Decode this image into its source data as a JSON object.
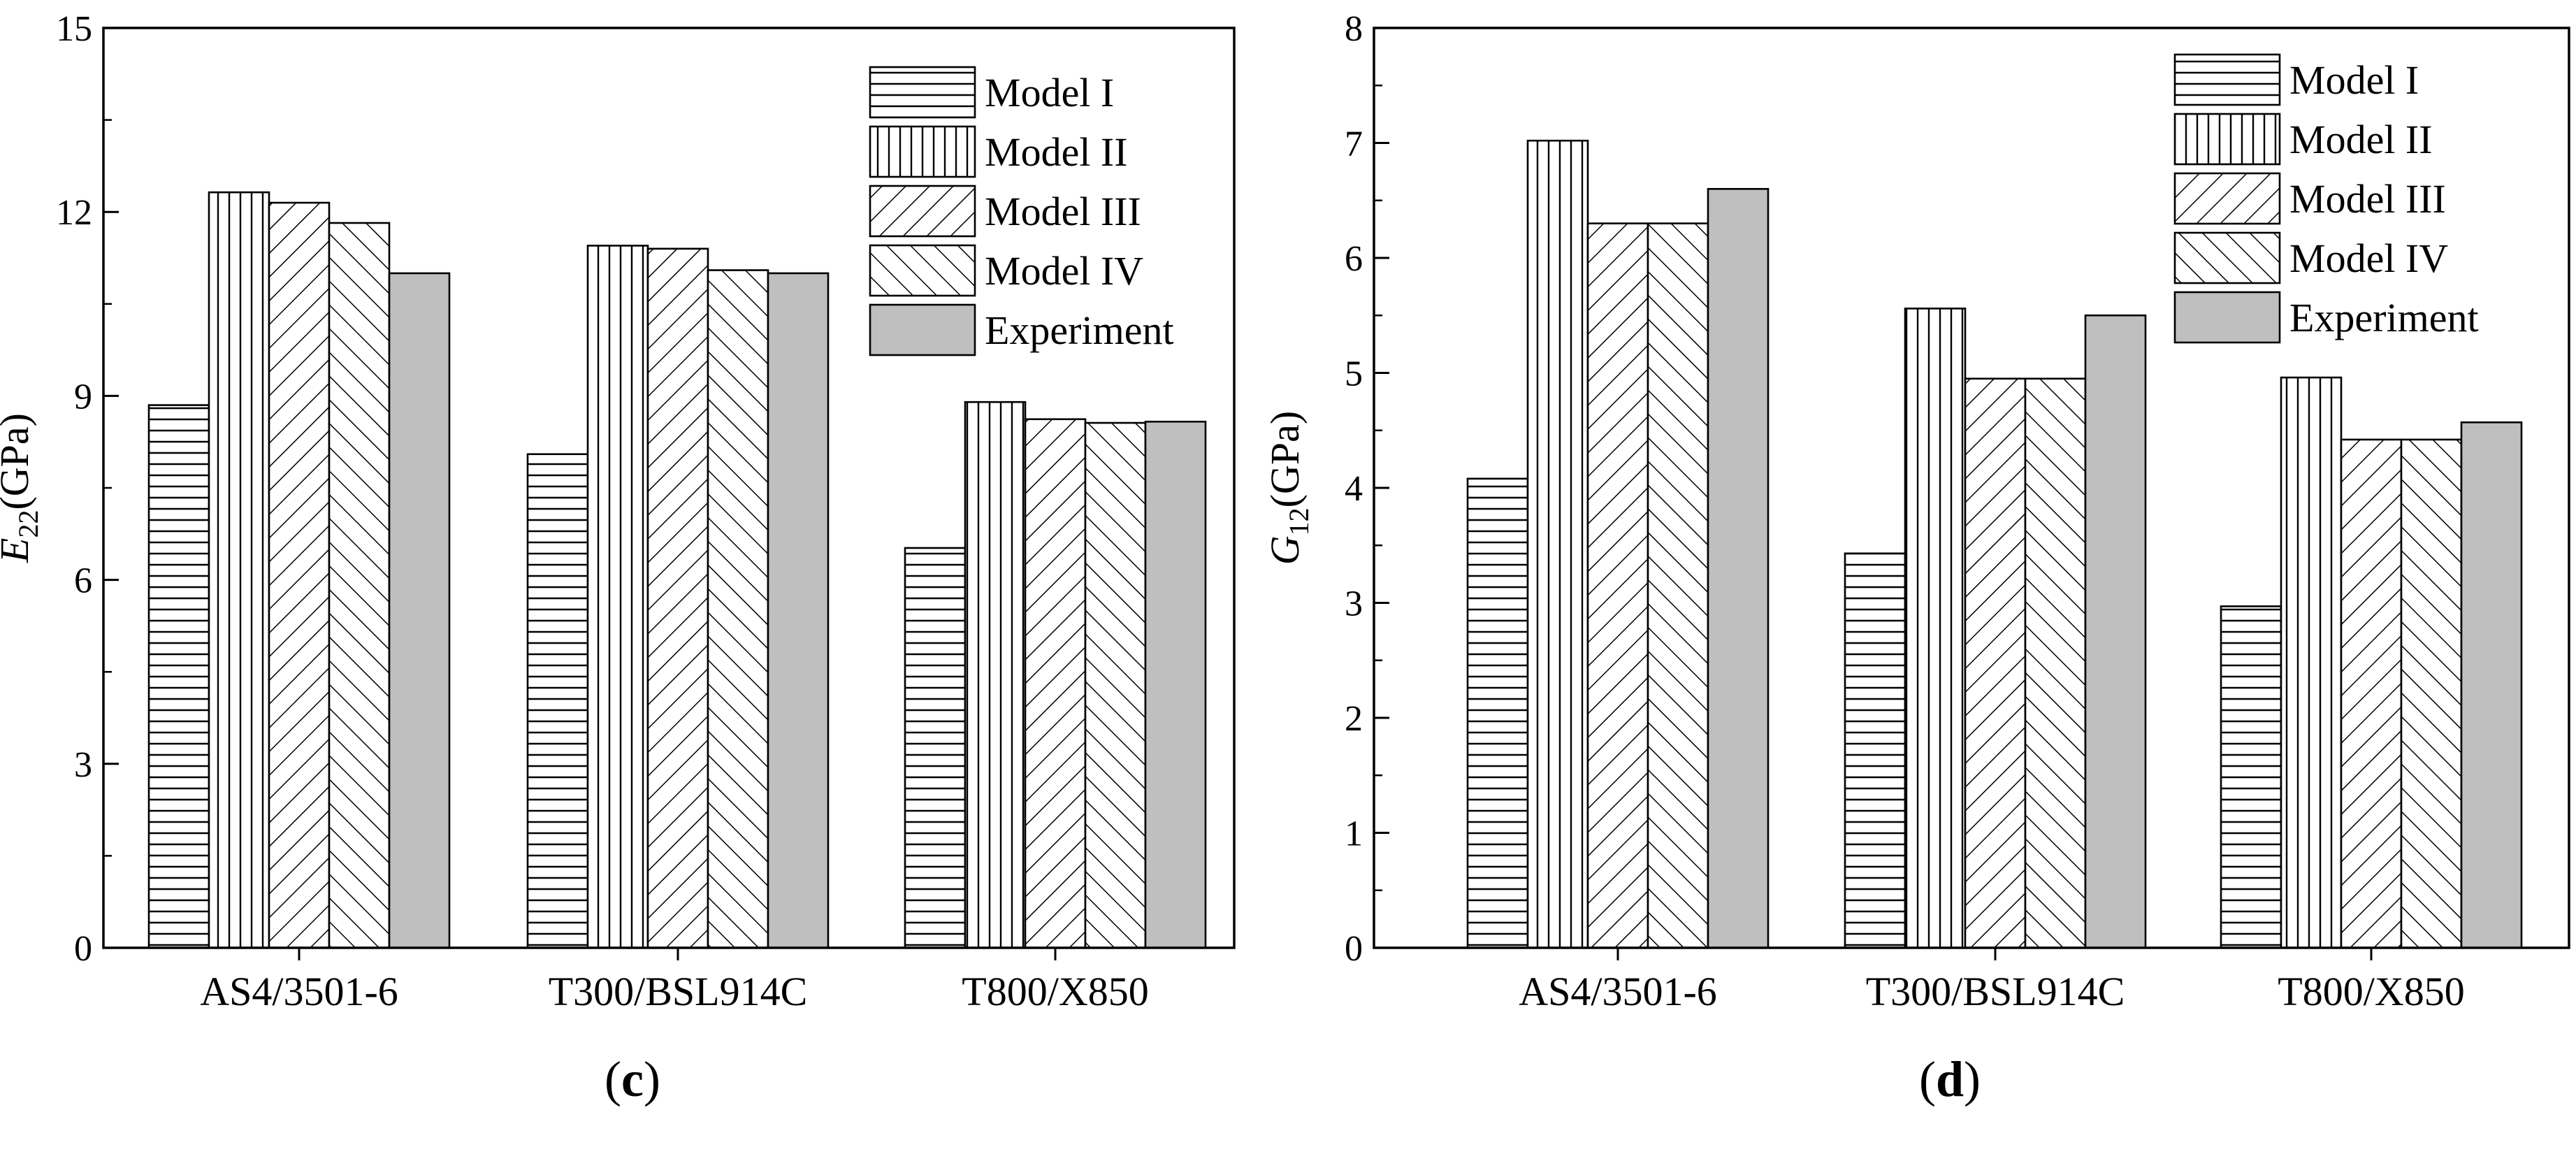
{
  "chart_data": [
    {
      "type": "bar",
      "panel": "c",
      "categories": [
        "AS4/3501-6",
        "T300/BSL914C",
        "T800/X850"
      ],
      "series": [
        {
          "name": "Model I",
          "pattern": "hlines",
          "values": [
            8.85,
            8.05,
            6.52
          ]
        },
        {
          "name": "Model II",
          "pattern": "vlines",
          "values": [
            12.32,
            11.45,
            8.9
          ]
        },
        {
          "name": "Model III",
          "pattern": "fdiag",
          "values": [
            12.15,
            11.4,
            8.62
          ]
        },
        {
          "name": "Model IV",
          "pattern": "bdiag",
          "values": [
            11.82,
            11.05,
            8.56
          ]
        },
        {
          "name": "Experiment",
          "pattern": "solid",
          "values": [
            11.0,
            11.0,
            8.58
          ]
        }
      ],
      "ylabel_main": "E",
      "ylabel_sub": "22",
      "ylabel_unit": "(GPa)",
      "ylim": [
        0,
        15
      ],
      "yticks": [
        0,
        3,
        6,
        9,
        12,
        15
      ],
      "yminor": 1.5,
      "legend_position": "top-right"
    },
    {
      "type": "bar",
      "panel": "d",
      "categories": [
        "AS4/3501-6",
        "T300/BSL914C",
        "T800/X850"
      ],
      "series": [
        {
          "name": "Model I",
          "pattern": "hlines",
          "values": [
            4.08,
            3.43,
            2.97
          ]
        },
        {
          "name": "Model II",
          "pattern": "vlines",
          "values": [
            7.02,
            5.56,
            4.96
          ]
        },
        {
          "name": "Model III",
          "pattern": "fdiag",
          "values": [
            6.3,
            4.95,
            4.42
          ]
        },
        {
          "name": "Model IV",
          "pattern": "bdiag",
          "values": [
            6.3,
            4.95,
            4.42
          ]
        },
        {
          "name": "Experiment",
          "pattern": "solid",
          "values": [
            6.6,
            5.5,
            4.57
          ]
        }
      ],
      "ylabel_main": "G",
      "ylabel_sub": "12",
      "ylabel_unit": "(GPa)",
      "ylim": [
        0,
        8
      ],
      "yticks": [
        0,
        1,
        2,
        3,
        4,
        5,
        6,
        7,
        8
      ],
      "yminor": 0.5,
      "legend_position": "top-right"
    }
  ],
  "panel_labels": [
    "c",
    "d"
  ],
  "colors": {
    "axis": "#000000",
    "pattern_stroke": "#000000",
    "experiment_fill": "#bfbfbf",
    "background": "#ffffff"
  }
}
